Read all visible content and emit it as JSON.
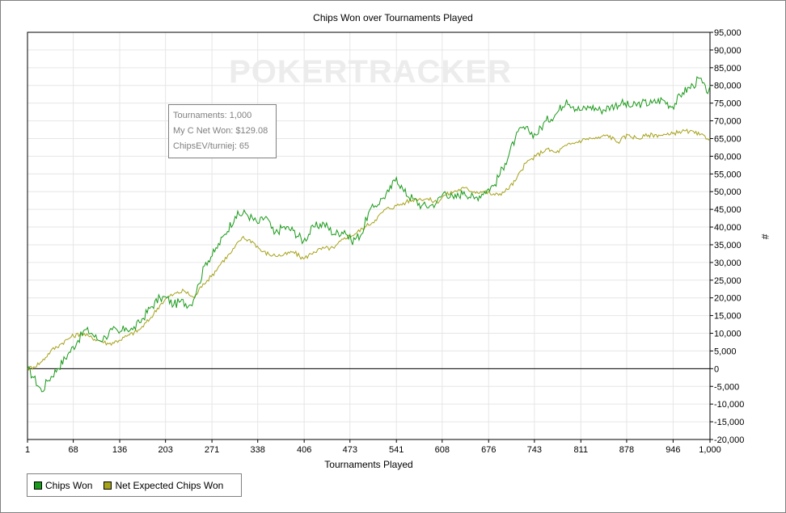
{
  "chart_data": {
    "type": "line",
    "title": "Chips Won over Tournaments Played",
    "xlabel": "Tournaments Played",
    "ylabel": "#",
    "xlim": [
      1,
      1000
    ],
    "ylim": [
      -20000,
      95000
    ],
    "x_ticks": [
      "1",
      "68",
      "136",
      "203",
      "271",
      "338",
      "406",
      "473",
      "541",
      "608",
      "676",
      "743",
      "811",
      "878",
      "946",
      "1,000"
    ],
    "x_tick_values": [
      1,
      68,
      136,
      203,
      271,
      338,
      406,
      473,
      541,
      608,
      676,
      743,
      811,
      878,
      946,
      1000
    ],
    "y_tick_values": [
      95000,
      90000,
      85000,
      80000,
      75000,
      70000,
      65000,
      60000,
      55000,
      50000,
      45000,
      40000,
      35000,
      30000,
      25000,
      20000,
      15000,
      10000,
      5000,
      0,
      -5000,
      -10000,
      -15000,
      -20000
    ],
    "y_ticks": [
      "95,000",
      "90,000",
      "85,000",
      "80,000",
      "75,000",
      "70,000",
      "65,000",
      "60,000",
      "55,000",
      "50,000",
      "45,000",
      "40,000",
      "35,000",
      "30,000",
      "25,000",
      "20,000",
      "15,000",
      "10,000",
      "5,000",
      "0",
      "-5,000",
      "-10,000",
      "-15,000",
      "-20,000"
    ],
    "grid": true,
    "legend_position": "bottom-left",
    "watermark": "POKERTRACKER",
    "series": [
      {
        "name": "Chips Won",
        "color": "#1a9a1a",
        "x": [
          1,
          10,
          22,
          30,
          45,
          60,
          75,
          85,
          95,
          105,
          115,
          125,
          135,
          145,
          155,
          165,
          180,
          195,
          205,
          215,
          225,
          240,
          252,
          262,
          275,
          290,
          305,
          320,
          338,
          350,
          362,
          375,
          390,
          405,
          420,
          435,
          450,
          465,
          475,
          490,
          500,
          510,
          520,
          530,
          541,
          552,
          565,
          578,
          590,
          600,
          612,
          625,
          640,
          655,
          670,
          685,
          700,
          715,
          725,
          735,
          745,
          760,
          775,
          790,
          800,
          811,
          825,
          840,
          855,
          870,
          885,
          900,
          915,
          930,
          945,
          960,
          975,
          985,
          995,
          1000
        ],
        "y": [
          0,
          -2500,
          -6500,
          -3500,
          0,
          4000,
          8000,
          11000,
          10000,
          8000,
          9000,
          11000,
          10000,
          11500,
          11000,
          13000,
          17000,
          20000,
          20000,
          18000,
          19000,
          18000,
          24000,
          30000,
          33000,
          38000,
          43000,
          44000,
          41000,
          43000,
          38000,
          40000,
          39000,
          36000,
          40000,
          41000,
          38000,
          39000,
          36000,
          38000,
          44000,
          46000,
          48000,
          50000,
          54000,
          50000,
          48000,
          46000,
          46000,
          47000,
          50000,
          48000,
          50000,
          48000,
          50000,
          52000,
          58000,
          65000,
          68000,
          67000,
          66000,
          70000,
          72000,
          76000,
          74000,
          73000,
          74000,
          73000,
          74000,
          75000,
          74000,
          75000,
          75000,
          76000,
          74000,
          78000,
          80000,
          82000,
          78000,
          80000
        ]
      },
      {
        "name": "Net Expected Chips Won",
        "color": "#a6a21a",
        "x": [
          1,
          10,
          22,
          35,
          50,
          65,
          80,
          92,
          105,
          120,
          135,
          150,
          165,
          180,
          195,
          205,
          215,
          230,
          245,
          258,
          270,
          285,
          300,
          315,
          330,
          345,
          360,
          375,
          390,
          405,
          420,
          435,
          450,
          465,
          480,
          495,
          510,
          525,
          541,
          555,
          570,
          585,
          600,
          612,
          625,
          640,
          655,
          670,
          685,
          700,
          715,
          730,
          745,
          760,
          775,
          790,
          805,
          820,
          835,
          850,
          865,
          880,
          895,
          910,
          925,
          940,
          955,
          970,
          985,
          1000
        ],
        "y": [
          0,
          500,
          2000,
          5000,
          7000,
          9000,
          10000,
          9000,
          8000,
          7000,
          8000,
          9500,
          11000,
          14000,
          18000,
          20000,
          21000,
          22000,
          20000,
          24000,
          26000,
          30000,
          33000,
          37000,
          36000,
          33000,
          32000,
          32000,
          33000,
          31000,
          33000,
          34000,
          34000,
          37000,
          38000,
          40000,
          42000,
          45000,
          46000,
          47000,
          48000,
          48000,
          47000,
          49000,
          50000,
          51000,
          50000,
          50000,
          49000,
          50000,
          53000,
          58000,
          60000,
          62000,
          61000,
          63000,
          64000,
          65000,
          65000,
          66000,
          64000,
          66000,
          65000,
          66000,
          66000,
          66000,
          67000,
          67000,
          66000,
          65000
        ]
      }
    ]
  },
  "tooltip": {
    "line1": "Tournaments: 1,000",
    "line2": "My C Net Won: $129.08",
    "line3": "ChipsEV/turniej: 65"
  }
}
